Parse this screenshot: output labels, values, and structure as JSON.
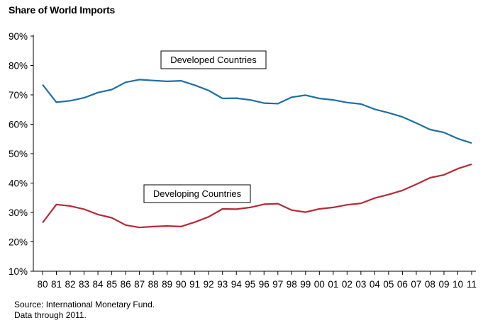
{
  "chart_data": {
    "type": "line",
    "title": "Share of World Imports",
    "categories": [
      "80",
      "81",
      "82",
      "83",
      "84",
      "85",
      "86",
      "87",
      "88",
      "89",
      "90",
      "91",
      "92",
      "93",
      "94",
      "95",
      "96",
      "97",
      "98",
      "99",
      "00",
      "01",
      "02",
      "03",
      "04",
      "05",
      "06",
      "07",
      "08",
      "09",
      "10",
      "11"
    ],
    "ylim": [
      10,
      90
    ],
    "yticks": [
      "10%",
      "20%",
      "30%",
      "40%",
      "50%",
      "60%",
      "70%",
      "80%",
      "90%"
    ],
    "grid": false,
    "series": [
      {
        "name": "Developed Countries",
        "color": "#1f6fa3",
        "values": [
          73.5,
          67.5,
          68,
          69,
          70.8,
          71.8,
          74.3,
          75.2,
          74.9,
          74.6,
          74.8,
          73.3,
          71.5,
          68.8,
          68.9,
          68.3,
          67.2,
          67,
          69.2,
          69.9,
          68.8,
          68.3,
          67.4,
          66.9,
          65.1,
          63.9,
          62.5,
          60.4,
          58.2,
          57.2,
          55.1,
          53.6
        ]
      },
      {
        "name": "Developing Countries",
        "color": "#b52a36",
        "values": [
          26.5,
          32.7,
          32.2,
          31.1,
          29.3,
          28.2,
          25.7,
          24.9,
          25.2,
          25.4,
          25.2,
          26.7,
          28.5,
          31.2,
          31.1,
          31.7,
          32.8,
          33,
          30.8,
          30.1,
          31.2,
          31.7,
          32.6,
          33.1,
          34.9,
          36.1,
          37.5,
          39.6,
          41.8,
          42.8,
          44.9,
          46.4
        ]
      }
    ],
    "source_lines": [
      "Source: International Monetary Fund.",
      "Data through 2011."
    ]
  }
}
